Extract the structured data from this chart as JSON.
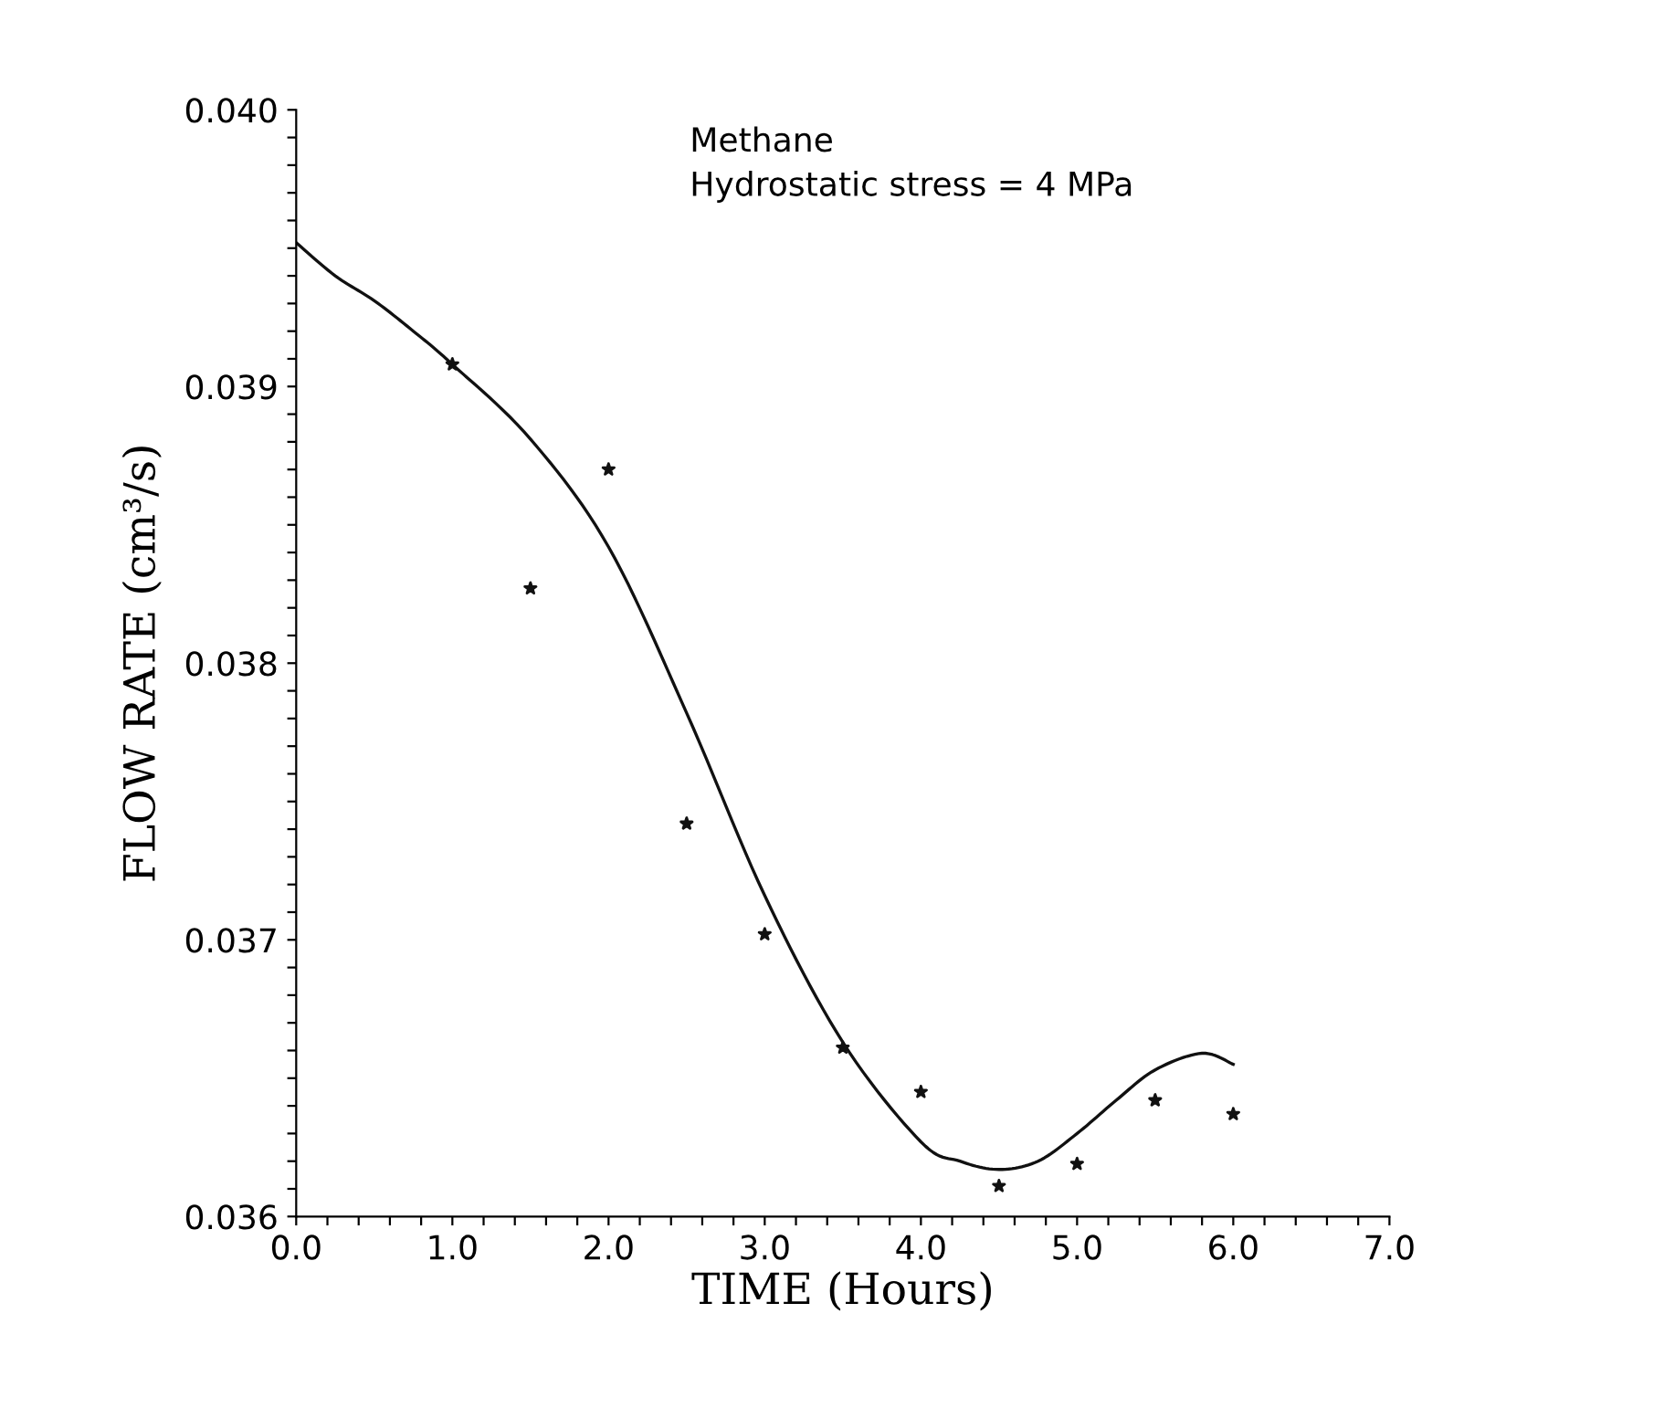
{
  "chart_data": {
    "type": "scatter",
    "xlabel": "TIME (Hours)",
    "ylabel": "FLOW RATE (cm³/s)",
    "annotations": [
      "Methane",
      "Hydrostatic stress = 4 MPa"
    ],
    "series": [
      {
        "color": "#111111",
        "marker": "star",
        "x": [
          1.0,
          1.5,
          2.0,
          2.5,
          3.0,
          3.5,
          4.0,
          4.5,
          5.0,
          5.5,
          6.0
        ],
        "values": [
          0.03908,
          0.03827,
          0.0387,
          0.03742,
          0.03702,
          0.03661,
          0.03645,
          0.03611,
          0.03619,
          0.03642,
          0.03637
        ]
      },
      {
        "type": "line",
        "color": "#111111",
        "line_style": "solid",
        "x": [
          0.0,
          0.25,
          0.5,
          0.75,
          1.0,
          1.5,
          2.0,
          2.5,
          3.0,
          3.5,
          4.0,
          4.25,
          4.5,
          4.75,
          5.0,
          5.25,
          5.5,
          5.8,
          6.0
        ],
        "values": [
          0.03952,
          0.0394,
          0.03931,
          0.0392,
          0.03908,
          0.03881,
          0.03842,
          0.03782,
          0.03716,
          0.03663,
          0.03627,
          0.0362,
          0.03617,
          0.0362,
          0.0363,
          0.03642,
          0.03653,
          0.03659,
          0.03655
        ]
      }
    ],
    "xlim": [
      0.0,
      7.0
    ],
    "ylim": [
      0.036,
      0.04
    ],
    "xticks": [
      {
        "value": 0.0,
        "label": "0.0"
      },
      {
        "value": 0.2,
        "label": null
      },
      {
        "value": 0.4,
        "label": null
      },
      {
        "value": 0.6,
        "label": null
      },
      {
        "value": 0.8,
        "label": null
      },
      {
        "value": 1.0,
        "label": "1.0"
      },
      {
        "value": 1.2,
        "label": null
      },
      {
        "value": 1.4,
        "label": null
      },
      {
        "value": 1.6,
        "label": null
      },
      {
        "value": 1.8,
        "label": null
      },
      {
        "value": 2.0,
        "label": "2.0"
      },
      {
        "value": 2.2,
        "label": null
      },
      {
        "value": 2.4,
        "label": null
      },
      {
        "value": 2.6,
        "label": null
      },
      {
        "value": 2.8,
        "label": null
      },
      {
        "value": 3.0,
        "label": "3.0"
      },
      {
        "value": 3.2,
        "label": null
      },
      {
        "value": 3.4,
        "label": null
      },
      {
        "value": 3.6,
        "label": null
      },
      {
        "value": 3.8,
        "label": null
      },
      {
        "value": 4.0,
        "label": "4.0"
      },
      {
        "value": 4.2,
        "label": null
      },
      {
        "value": 4.4,
        "label": null
      },
      {
        "value": 4.6,
        "label": null
      },
      {
        "value": 4.8,
        "label": null
      },
      {
        "value": 5.0,
        "label": "5.0"
      },
      {
        "value": 5.2,
        "label": null
      },
      {
        "value": 5.4,
        "label": null
      },
      {
        "value": 5.6,
        "label": null
      },
      {
        "value": 5.8,
        "label": null
      },
      {
        "value": 6.0,
        "label": "6.0"
      },
      {
        "value": 6.2,
        "label": null
      },
      {
        "value": 6.4,
        "label": null
      },
      {
        "value": 6.6,
        "label": null
      },
      {
        "value": 6.8,
        "label": null
      },
      {
        "value": 7.0,
        "label": "7.0"
      }
    ],
    "yticks": [
      {
        "value": 0.036,
        "label": "0.036"
      },
      {
        "value": 0.0361,
        "label": null
      },
      {
        "value": 0.0362,
        "label": null
      },
      {
        "value": 0.0363,
        "label": null
      },
      {
        "value": 0.0364,
        "label": null
      },
      {
        "value": 0.0365,
        "label": null
      },
      {
        "value": 0.0366,
        "label": null
      },
      {
        "value": 0.0367,
        "label": null
      },
      {
        "value": 0.0368,
        "label": null
      },
      {
        "value": 0.0369,
        "label": null
      },
      {
        "value": 0.037,
        "label": "0.037"
      },
      {
        "value": 0.0371,
        "label": null
      },
      {
        "value": 0.0372,
        "label": null
      },
      {
        "value": 0.0373,
        "label": null
      },
      {
        "value": 0.0374,
        "label": null
      },
      {
        "value": 0.0375,
        "label": null
      },
      {
        "value": 0.0376,
        "label": null
      },
      {
        "value": 0.0377,
        "label": null
      },
      {
        "value": 0.0378,
        "label": null
      },
      {
        "value": 0.0379,
        "label": null
      },
      {
        "value": 0.038,
        "label": "0.038"
      },
      {
        "value": 0.0381,
        "label": null
      },
      {
        "value": 0.0382,
        "label": null
      },
      {
        "value": 0.0383,
        "label": null
      },
      {
        "value": 0.0384,
        "label": null
      },
      {
        "value": 0.0385,
        "label": null
      },
      {
        "value": 0.0386,
        "label": null
      },
      {
        "value": 0.0387,
        "label": null
      },
      {
        "value": 0.0388,
        "label": null
      },
      {
        "value": 0.0389,
        "label": null
      },
      {
        "value": 0.039,
        "label": "0.039"
      },
      {
        "value": 0.0391,
        "label": null
      },
      {
        "value": 0.0392,
        "label": null
      },
      {
        "value": 0.0393,
        "label": null
      },
      {
        "value": 0.0394,
        "label": null
      },
      {
        "value": 0.0395,
        "label": null
      },
      {
        "value": 0.0396,
        "label": null
      },
      {
        "value": 0.0397,
        "label": null
      },
      {
        "value": 0.0398,
        "label": null
      },
      {
        "value": 0.0399,
        "label": null
      },
      {
        "value": 0.04,
        "label": "0.040"
      }
    ],
    "grid": false,
    "legend": false
  }
}
